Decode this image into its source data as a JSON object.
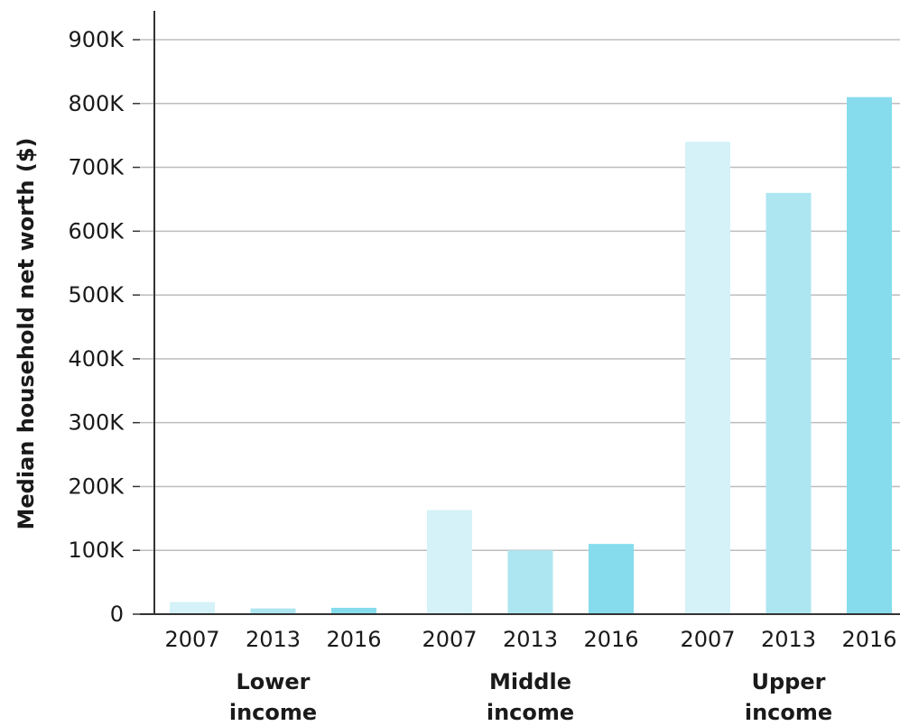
{
  "chart_data": {
    "type": "bar",
    "title": "",
    "ylabel": "Median household net worth ($)",
    "xlabel": "",
    "ylim": [
      0,
      900000
    ],
    "ytick_values": [
      0,
      100000,
      200000,
      300000,
      400000,
      500000,
      600000,
      700000,
      800000,
      900000
    ],
    "ytick_labels": [
      "0",
      "100K",
      "200K",
      "300K",
      "400K",
      "500K",
      "600K",
      "700K",
      "800K",
      "900K"
    ],
    "grid": true,
    "legend": "none",
    "year_colors": {
      "2007": "#d4f2f8",
      "2013": "#ade6f1",
      "2016": "#86dcec"
    },
    "groups": [
      {
        "label_line1": "Lower",
        "label_line2": "income",
        "bars": [
          {
            "year": "2007",
            "value": 19000
          },
          {
            "year": "2013",
            "value": 9000
          },
          {
            "year": "2016",
            "value": 10000
          }
        ]
      },
      {
        "label_line1": "Middle",
        "label_line2": "income",
        "bars": [
          {
            "year": "2007",
            "value": 163000
          },
          {
            "year": "2013",
            "value": 100000
          },
          {
            "year": "2016",
            "value": 110000
          }
        ]
      },
      {
        "label_line1": "Upper",
        "label_line2": "income",
        "bars": [
          {
            "year": "2007",
            "value": 740000
          },
          {
            "year": "2013",
            "value": 660000
          },
          {
            "year": "2016",
            "value": 810000
          }
        ]
      }
    ]
  }
}
